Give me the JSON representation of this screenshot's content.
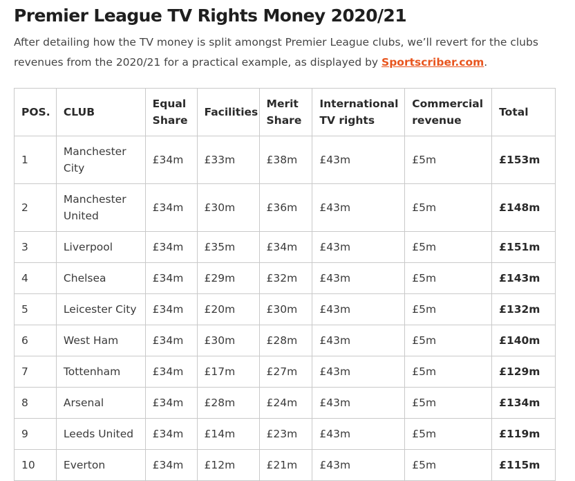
{
  "title": "Premier League TV Rights Money 2020/21",
  "intro": {
    "text": "After detailing how the TV money is split amongst Premier League clubs, we’ll revert for the clubs revenues from the 2020/21 for a practical example, as displayed by ",
    "link_label": "Sportscriber.com",
    "suffix": "."
  },
  "table": {
    "headers": {
      "pos": "POS.",
      "club": "CLUB",
      "equal_share": "Equal Share",
      "facilities": "Facilities",
      "merit_share": "Merit Share",
      "international": "International TV rights",
      "commercial": "Commercial revenue",
      "total": "Total"
    },
    "rows": [
      {
        "pos": "1",
        "club": "Manchester City",
        "equal": "£34m",
        "facilities": "£33m",
        "merit": "£38m",
        "international": "£43m",
        "commercial": "£5m",
        "total": "£153m"
      },
      {
        "pos": "2",
        "club": "Manchester United",
        "equal": "£34m",
        "facilities": "£30m",
        "merit": "£36m",
        "international": "£43m",
        "commercial": "£5m",
        "total": "£148m"
      },
      {
        "pos": "3",
        "club": "Liverpool",
        "equal": "£34m",
        "facilities": "£35m",
        "merit": "£34m",
        "international": "£43m",
        "commercial": "£5m",
        "total": "£151m"
      },
      {
        "pos": "4",
        "club": "Chelsea",
        "equal": "£34m",
        "facilities": "£29m",
        "merit": "£32m",
        "international": "£43m",
        "commercial": "£5m",
        "total": "£143m"
      },
      {
        "pos": "5",
        "club": "Leicester City",
        "equal": "£34m",
        "facilities": "£20m",
        "merit": "£30m",
        "international": "£43m",
        "commercial": "£5m",
        "total": "£132m"
      },
      {
        "pos": "6",
        "club": "West Ham",
        "equal": "£34m",
        "facilities": "£30m",
        "merit": "£28m",
        "international": "£43m",
        "commercial": "£5m",
        "total": "£140m"
      },
      {
        "pos": "7",
        "club": "Tottenham",
        "equal": "£34m",
        "facilities": "£17m",
        "merit": "£27m",
        "international": "£43m",
        "commercial": "£5m",
        "total": "£129m"
      },
      {
        "pos": "8",
        "club": "Arsenal",
        "equal": "£34m",
        "facilities": "£28m",
        "merit": "£24m",
        "international": "£43m",
        "commercial": "£5m",
        "total": "£134m"
      },
      {
        "pos": "9",
        "club": "Leeds United",
        "equal": "£34m",
        "facilities": "£14m",
        "merit": "£23m",
        "international": "£43m",
        "commercial": "£5m",
        "total": "£119m"
      },
      {
        "pos": "10",
        "club": "Everton",
        "equal": "£34m",
        "facilities": "£12m",
        "merit": "£21m",
        "international": "£43m",
        "commercial": "£5m",
        "total": "£115m"
      }
    ]
  },
  "colors": {
    "link": "#e8551e",
    "border": "#c9c9c9",
    "text": "#333333"
  }
}
